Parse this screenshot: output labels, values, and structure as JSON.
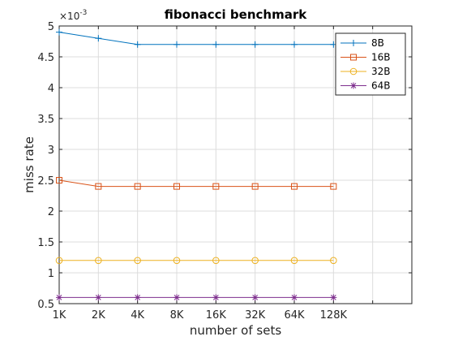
{
  "chart_data": {
    "type": "line",
    "title": "fibonacci benchmark",
    "xlabel": "number of sets",
    "ylabel": "miss rate",
    "y_exponent_label": "×10",
    "y_exponent_power": "-3",
    "categories": [
      "1K",
      "2K",
      "4K",
      "8K",
      "16K",
      "32K",
      "64K",
      "128K"
    ],
    "x_extent": [
      0,
      9
    ],
    "ylim": [
      0.5,
      5
    ],
    "yticks": [
      0.5,
      1,
      1.5,
      2,
      2.5,
      3,
      3.5,
      4,
      4.5,
      5
    ],
    "ytick_labels": [
      "0.5",
      "1",
      "1.5",
      "2",
      "2.5",
      "3",
      "3.5",
      "4",
      "4.5",
      "5"
    ],
    "grid": true,
    "legend_position": "top-right",
    "series": [
      {
        "name": "8B",
        "color": "#0072BD",
        "marker": "plus",
        "values": [
          4.9,
          4.8,
          4.7,
          4.7,
          4.7,
          4.7,
          4.7,
          4.7
        ]
      },
      {
        "name": "16B",
        "color": "#D95319",
        "marker": "square",
        "values": [
          2.5,
          2.4,
          2.4,
          2.4,
          2.4,
          2.4,
          2.4,
          2.4
        ]
      },
      {
        "name": "32B",
        "color": "#EDB120",
        "marker": "circle",
        "values": [
          1.2,
          1.2,
          1.2,
          1.2,
          1.2,
          1.2,
          1.2,
          1.2
        ]
      },
      {
        "name": "64B",
        "color": "#7E2F8E",
        "marker": "asterisk",
        "values": [
          0.6,
          0.6,
          0.6,
          0.6,
          0.6,
          0.6,
          0.6,
          0.6
        ]
      }
    ]
  }
}
